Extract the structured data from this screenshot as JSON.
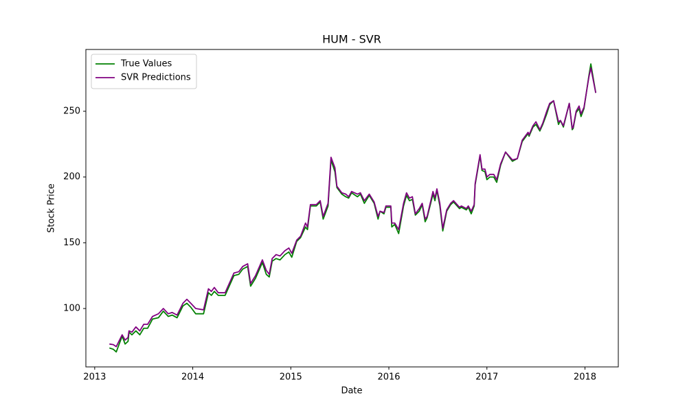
{
  "chart_data": {
    "type": "line",
    "title": "HUM - SVR",
    "xlabel": "Date",
    "ylabel": "Stock Price",
    "x": [
      2013.15,
      2013.19,
      2013.22,
      2013.28,
      2013.31,
      2013.34,
      2013.35,
      2013.38,
      2013.42,
      2013.46,
      2013.5,
      2013.54,
      2013.59,
      2013.65,
      2013.7,
      2013.75,
      2013.79,
      2013.84,
      2013.9,
      2013.94,
      2013.98,
      2014.03,
      2014.11,
      2014.16,
      2014.19,
      2014.22,
      2014.26,
      2014.33,
      2014.42,
      2014.47,
      2014.51,
      2014.56,
      2014.59,
      2014.64,
      2014.71,
      2014.75,
      2014.78,
      2014.81,
      2014.85,
      2014.89,
      2014.94,
      2014.98,
      2015.01,
      2015.06,
      2015.1,
      2015.15,
      2015.17,
      2015.2,
      2015.26,
      2015.3,
      2015.33,
      2015.38,
      2015.41,
      2015.45,
      2015.47,
      2015.52,
      2015.56,
      2015.59,
      2015.62,
      2015.68,
      2015.71,
      2015.75,
      2015.8,
      2015.85,
      2015.89,
      2015.91,
      2015.95,
      2015.97,
      2016.02,
      2016.03,
      2016.06,
      2016.1,
      2016.15,
      2016.18,
      2016.21,
      2016.24,
      2016.27,
      2016.31,
      2016.34,
      2016.37,
      2016.39,
      2016.45,
      2016.47,
      2016.49,
      2016.52,
      2016.55,
      2016.59,
      2016.63,
      2016.66,
      2016.72,
      2016.74,
      2016.79,
      2016.81,
      2016.84,
      2016.87,
      2016.88,
      2016.93,
      2016.95,
      2016.98,
      2017.0,
      2017.03,
      2017.07,
      2017.1,
      2017.14,
      2017.19,
      2017.26,
      2017.31,
      2017.36,
      2017.42,
      2017.43,
      2017.47,
      2017.5,
      2017.54,
      2017.57,
      2017.61,
      2017.64,
      2017.68,
      2017.73,
      2017.75,
      2017.78,
      2017.84,
      2017.87,
      2017.88,
      2017.91,
      2017.94,
      2017.96,
      2017.99,
      2018.04,
      2018.06,
      2018.11
    ],
    "series": [
      {
        "name": "True Values",
        "color": "#008000",
        "values": [
          70,
          69,
          67,
          79,
          73,
          75,
          82,
          80,
          83,
          80,
          85,
          85,
          92,
          93,
          98,
          94,
          95,
          93,
          102,
          104,
          101,
          96,
          96,
          112,
          110,
          113,
          110,
          110,
          125,
          126,
          130,
          132,
          117,
          123,
          135,
          126,
          124,
          136,
          138,
          137,
          141,
          143,
          139,
          151,
          154,
          162,
          160,
          178,
          178,
          181,
          168,
          178,
          213,
          204,
          192,
          187,
          185,
          184,
          188,
          185,
          187,
          180,
          186,
          180,
          168,
          174,
          172,
          177,
          177,
          162,
          164,
          157,
          178,
          186,
          182,
          183,
          171,
          174,
          179,
          166,
          169,
          187,
          182,
          190,
          178,
          159,
          174,
          179,
          181,
          176,
          177,
          175,
          177,
          172,
          178,
          194,
          216,
          205,
          204,
          198,
          200,
          200,
          196,
          209,
          219,
          212,
          214,
          227,
          233,
          231,
          238,
          240,
          235,
          240,
          248,
          255,
          258,
          240,
          243,
          238,
          256,
          236,
          237,
          249,
          252,
          246,
          252,
          277,
          286,
          264
        ]
      },
      {
        "name": "SVR Predictions",
        "color": "#800080",
        "values": [
          73,
          72.5,
          71,
          80,
          76,
          78,
          83,
          82,
          86,
          83,
          88,
          88,
          94,
          96,
          100,
          96,
          97,
          95,
          104,
          107,
          104,
          100,
          99,
          115,
          113,
          116,
          112,
          112,
          127,
          128,
          132,
          134,
          119,
          125,
          137,
          129,
          126,
          138,
          141,
          140,
          144,
          146,
          142,
          152,
          155,
          165,
          162,
          179,
          179,
          182,
          170,
          180,
          215,
          207,
          193,
          188,
          187,
          185,
          189,
          187,
          188,
          182,
          187,
          181,
          170,
          174,
          173,
          178,
          178,
          165,
          165,
          160,
          180,
          188,
          184,
          185,
          172,
          176,
          180,
          168,
          170,
          189,
          184,
          191,
          180,
          161,
          175,
          180,
          182,
          177,
          178,
          176,
          178,
          174,
          179,
          195,
          217,
          206,
          206,
          200,
          202,
          202,
          198,
          210,
          219,
          213,
          214,
          228,
          234,
          232,
          239,
          242,
          236,
          241,
          250,
          256,
          258,
          242,
          243,
          239,
          256,
          237,
          238,
          250,
          254,
          248,
          253,
          276,
          283,
          264
        ]
      }
    ],
    "xlim": [
      2012.91,
      2018.34
    ],
    "xticks": [
      2013,
      2014,
      2015,
      2016,
      2017,
      2018
    ],
    "ylim": [
      55.6,
      297
    ],
    "yticks": [
      100,
      150,
      200,
      250
    ],
    "legend": "upper left",
    "grid": false
  }
}
